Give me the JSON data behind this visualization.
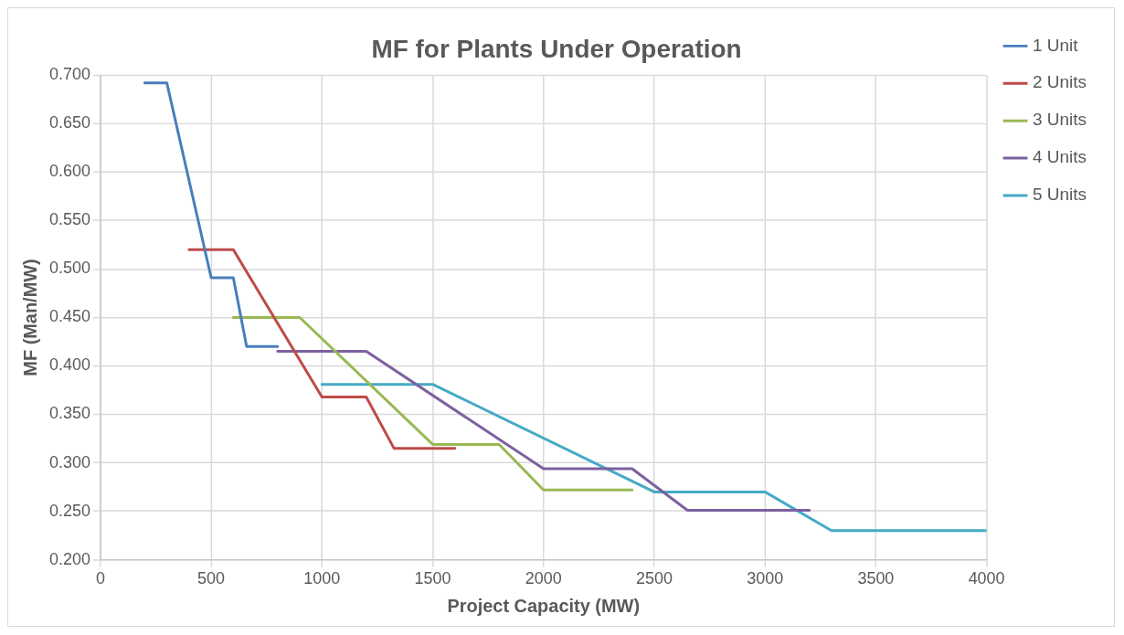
{
  "chart_data": {
    "type": "line",
    "title": "MF for Plants Under Operation",
    "xlabel": "Project Capacity (MW)",
    "ylabel": "MF (Man/MW)",
    "xlim": [
      0,
      4000
    ],
    "xticks": [
      0,
      500,
      1000,
      1500,
      2000,
      2500,
      3000,
      3500,
      4000
    ],
    "ylim": [
      0.2,
      0.7
    ],
    "yticks": [
      {
        "value": 0.2,
        "label": "0.200"
      },
      {
        "value": 0.25,
        "label": "0.250"
      },
      {
        "value": 0.3,
        "label": "0.300"
      },
      {
        "value": 0.35,
        "label": "0.350"
      },
      {
        "value": 0.4,
        "label": "0.400"
      },
      {
        "value": 0.45,
        "label": "0.450"
      },
      {
        "value": 0.5,
        "label": "0.500"
      },
      {
        "value": 0.55,
        "label": "0.550"
      },
      {
        "value": 0.6,
        "label": "0.600"
      },
      {
        "value": 0.65,
        "label": "0.650"
      },
      {
        "value": 0.7,
        "label": "0.700"
      }
    ],
    "grid": true,
    "legend": "right",
    "marker": "none",
    "line_style": "solid",
    "series": [
      {
        "name": "1 Unit",
        "color": "#4a7ebb",
        "x": [
          200,
          300,
          500,
          600,
          660,
          800
        ],
        "values": [
          0.692,
          0.692,
          0.491,
          0.491,
          0.42,
          0.42
        ]
      },
      {
        "name": "2 Units",
        "color": "#be4b48",
        "x": [
          400,
          600,
          1000,
          1200,
          1325,
          1600
        ],
        "values": [
          0.52,
          0.52,
          0.368,
          0.368,
          0.315,
          0.315
        ]
      },
      {
        "name": "3 Units",
        "color": "#98b954",
        "x": [
          600,
          900,
          1500,
          1800,
          2000,
          2400
        ],
        "values": [
          0.45,
          0.45,
          0.319,
          0.319,
          0.272,
          0.272
        ]
      },
      {
        "name": "4 Units",
        "color": "#7d60a0",
        "x": [
          800,
          1200,
          2000,
          2400,
          2650,
          3200
        ],
        "values": [
          0.415,
          0.415,
          0.294,
          0.294,
          0.251,
          0.251
        ]
      },
      {
        "name": "5 Units",
        "color": "#46aac5",
        "x": [
          1000,
          1500,
          2500,
          3000,
          3300,
          4000
        ],
        "values": [
          0.381,
          0.381,
          0.27,
          0.27,
          0.23,
          0.23
        ]
      }
    ]
  }
}
